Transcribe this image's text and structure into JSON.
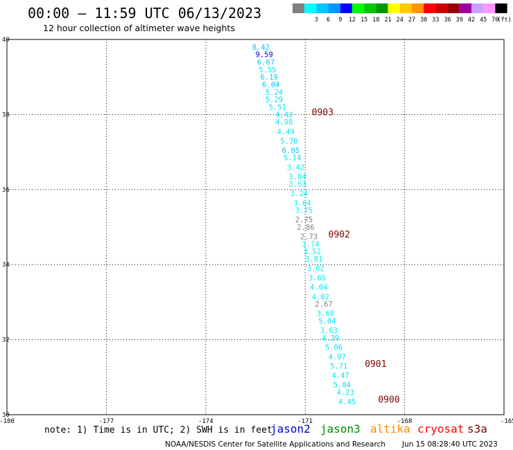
{
  "header": {
    "title": "00:00 – 11:59 UTC 06/13/2023",
    "subtitle": "12 hour collection of altimeter wave heights"
  },
  "color_legend": {
    "unit": "(ft)",
    "bins": [
      {
        "label": "",
        "color": "#808080"
      },
      {
        "label": "3",
        "color": "#00ffff"
      },
      {
        "label": "6",
        "color": "#00c8ff"
      },
      {
        "label": "9",
        "color": "#0096ff"
      },
      {
        "label": "12",
        "color": "#0000ff"
      },
      {
        "label": "15",
        "color": "#00ff00"
      },
      {
        "label": "18",
        "color": "#00c800"
      },
      {
        "label": "21",
        "color": "#009600"
      },
      {
        "label": "24",
        "color": "#ffff00"
      },
      {
        "label": "27",
        "color": "#ffc800"
      },
      {
        "label": "30",
        "color": "#ff9600"
      },
      {
        "label": "33",
        "color": "#ff0000"
      },
      {
        "label": "36",
        "color": "#c80000"
      },
      {
        "label": "39",
        "color": "#960000"
      },
      {
        "label": "42",
        "color": "#a000a0"
      },
      {
        "label": "45",
        "color": "#c8a0ff"
      },
      {
        "label": "70",
        "color": "#ff96ff"
      },
      {
        "label": "",
        "color": "#000000"
      }
    ]
  },
  "chart_data": {
    "type": "scatter",
    "xlim": [
      -180,
      -165
    ],
    "ylim": [
      30,
      40
    ],
    "x_ticks": [
      "-180",
      "-177",
      "-174",
      "-171",
      "-168",
      "-165"
    ],
    "x_tick_values": [
      -180,
      -177,
      -174,
      -171,
      -168,
      -165
    ],
    "y_ticks": [
      "30",
      "32",
      "34",
      "36",
      "38",
      "40"
    ],
    "y_tick_values": [
      30,
      32,
      34,
      36,
      38,
      40
    ],
    "grid": "dotted",
    "points": [
      {
        "lon": -172.6,
        "lat": 39.8,
        "label": "8.42",
        "color": "#00c8ff"
      },
      {
        "lon": -172.5,
        "lat": 39.6,
        "label": "9.59",
        "color": "#0000c8"
      },
      {
        "lon": -172.45,
        "lat": 39.4,
        "label": "6.67",
        "color": "#00c8ff"
      },
      {
        "lon": -172.4,
        "lat": 39.2,
        "label": "5.55",
        "color": "#00e0ff"
      },
      {
        "lon": -172.35,
        "lat": 39.0,
        "label": "6.19",
        "color": "#00c8ff"
      },
      {
        "lon": -172.3,
        "lat": 38.8,
        "label": "6.04",
        "color": "#00c8ff"
      },
      {
        "lon": -172.2,
        "lat": 38.6,
        "label": "5.24",
        "color": "#00e0ff"
      },
      {
        "lon": -172.2,
        "lat": 38.4,
        "label": "5.29",
        "color": "#00e0ff"
      },
      {
        "lon": -172.1,
        "lat": 38.2,
        "label": "5.51",
        "color": "#00e0ff"
      },
      {
        "lon": -171.9,
        "lat": 38.0,
        "label": "4.42",
        "color": "#00e8f0"
      },
      {
        "lon": -171.9,
        "lat": 37.8,
        "label": "4.98",
        "color": "#00e8f0"
      },
      {
        "lon": -171.85,
        "lat": 37.55,
        "label": "4.49",
        "color": "#00e8f0"
      },
      {
        "lon": -171.75,
        "lat": 37.3,
        "label": "5.70",
        "color": "#00e0ff"
      },
      {
        "lon": -171.7,
        "lat": 37.05,
        "label": "6.05",
        "color": "#00c8ff"
      },
      {
        "lon": -171.65,
        "lat": 36.85,
        "label": "5.14",
        "color": "#00e0ff"
      },
      {
        "lon": -171.55,
        "lat": 36.6,
        "label": "3.42",
        "color": "#00f0f0"
      },
      {
        "lon": -171.5,
        "lat": 36.35,
        "label": "3.84",
        "color": "#00f0f0"
      },
      {
        "lon": -171.5,
        "lat": 36.15,
        "label": "3.53",
        "color": "#00f0f0"
      },
      {
        "lon": -171.45,
        "lat": 35.9,
        "label": "3.24",
        "color": "#00f0f0"
      },
      {
        "lon": -171.35,
        "lat": 35.65,
        "label": "3.64",
        "color": "#00f0f0"
      },
      {
        "lon": -171.3,
        "lat": 35.45,
        "label": "3.75",
        "color": "#00f0f0"
      },
      {
        "lon": -171.3,
        "lat": 35.2,
        "label": "2.75",
        "color": "#808080"
      },
      {
        "lon": -171.25,
        "lat": 35.0,
        "label": "2.86",
        "color": "#808080"
      },
      {
        "lon": -171.15,
        "lat": 34.75,
        "label": "2.73",
        "color": "#808080"
      },
      {
        "lon": -171.1,
        "lat": 34.55,
        "label": "3.74",
        "color": "#00f0f0"
      },
      {
        "lon": -171.05,
        "lat": 34.35,
        "label": "3.52",
        "color": "#00f0f0"
      },
      {
        "lon": -171.0,
        "lat": 34.15,
        "label": "3.81",
        "color": "#00f0f0"
      },
      {
        "lon": -170.95,
        "lat": 33.9,
        "label": "3.82",
        "color": "#00f0f0"
      },
      {
        "lon": -170.9,
        "lat": 33.65,
        "label": "3.65",
        "color": "#00f0f0"
      },
      {
        "lon": -170.85,
        "lat": 33.4,
        "label": "4.04",
        "color": "#00e8f0"
      },
      {
        "lon": -170.8,
        "lat": 33.15,
        "label": "4.02",
        "color": "#00e8f0"
      },
      {
        "lon": -170.7,
        "lat": 32.95,
        "label": "2.67",
        "color": "#808080"
      },
      {
        "lon": -170.65,
        "lat": 32.7,
        "label": "3.68",
        "color": "#00f0f0"
      },
      {
        "lon": -170.6,
        "lat": 32.5,
        "label": "5.04",
        "color": "#00e0ff"
      },
      {
        "lon": -170.55,
        "lat": 32.25,
        "label": "3.63",
        "color": "#00f0f0"
      },
      {
        "lon": -170.5,
        "lat": 32.05,
        "label": "4.39",
        "color": "#00e8f0"
      },
      {
        "lon": -170.4,
        "lat": 31.8,
        "label": "5.06",
        "color": "#00e0ff"
      },
      {
        "lon": -170.3,
        "lat": 31.55,
        "label": "4.97",
        "color": "#00e8f0"
      },
      {
        "lon": -170.25,
        "lat": 31.3,
        "label": "5.71",
        "color": "#00e0ff"
      },
      {
        "lon": -170.2,
        "lat": 31.05,
        "label": "4.47",
        "color": "#00e8f0"
      },
      {
        "lon": -170.15,
        "lat": 30.8,
        "label": "5.84",
        "color": "#00e0ff"
      },
      {
        "lon": -170.05,
        "lat": 30.6,
        "label": "4.23",
        "color": "#00e8f0"
      },
      {
        "lon": -170.0,
        "lat": 30.35,
        "label": "4.45",
        "color": "#00e8f0"
      }
    ],
    "time_labels": [
      {
        "lon": -170.8,
        "lat": 38.05,
        "label": "0903"
      },
      {
        "lon": -170.3,
        "lat": 34.8,
        "label": "0902"
      },
      {
        "lon": -169.2,
        "lat": 31.35,
        "label": "0901"
      },
      {
        "lon": -168.8,
        "lat": 30.4,
        "label": "0900"
      }
    ]
  },
  "footer": {
    "note": "note:  1) Time is in UTC; 2) SWH is in feet",
    "satellites": [
      {
        "name": "jason2",
        "color": "#0000cc"
      },
      {
        "name": "jason3",
        "color": "#008800"
      },
      {
        "name": "altika",
        "color": "#ff8800"
      },
      {
        "name": "cryosat",
        "color": "#ff0000"
      },
      {
        "name": "s3a",
        "color": "#880000"
      }
    ],
    "credit": "NOAA/NESDIS Center for Satellite Applications and Research",
    "timestamp": "Jun 15 08:28:40 UTC 2023"
  }
}
